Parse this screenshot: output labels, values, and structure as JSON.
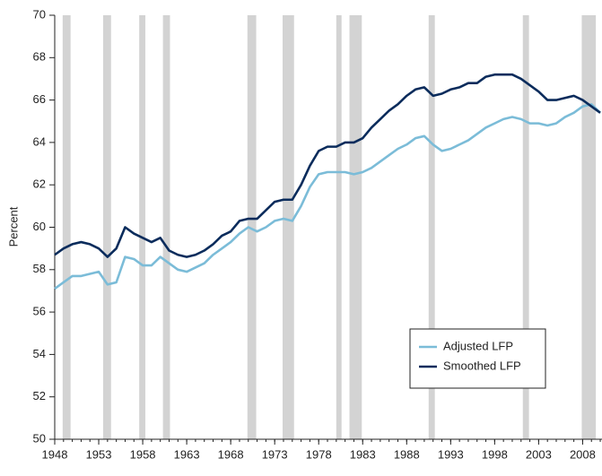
{
  "chart_data": {
    "type": "line",
    "y_label": "Percent",
    "x": [
      1948,
      1949,
      1950,
      1951,
      1952,
      1953,
      1954,
      1955,
      1956,
      1957,
      1958,
      1959,
      1960,
      1961,
      1962,
      1963,
      1964,
      1965,
      1966,
      1967,
      1968,
      1969,
      1970,
      1971,
      1972,
      1973,
      1974,
      1975,
      1976,
      1977,
      1978,
      1979,
      1980,
      1981,
      1982,
      1983,
      1984,
      1985,
      1986,
      1987,
      1988,
      1989,
      1990,
      1991,
      1992,
      1993,
      1994,
      1995,
      1996,
      1997,
      1998,
      1999,
      2000,
      2001,
      2002,
      2003,
      2004,
      2005,
      2006,
      2007,
      2008,
      2009,
      2010
    ],
    "series": [
      {
        "name": "Adjusted LFP",
        "color": "#7bbcd8",
        "values": [
          57.1,
          57.4,
          57.7,
          57.7,
          57.8,
          57.9,
          57.3,
          57.4,
          58.6,
          58.5,
          58.2,
          58.2,
          58.6,
          58.3,
          58.0,
          57.9,
          58.1,
          58.3,
          58.7,
          59.0,
          59.3,
          59.7,
          60.0,
          59.8,
          60.0,
          60.3,
          60.4,
          60.3,
          61.0,
          61.9,
          62.5,
          62.6,
          62.6,
          62.6,
          62.5,
          62.6,
          62.8,
          63.1,
          63.4,
          63.7,
          63.9,
          64.2,
          64.3,
          63.9,
          63.6,
          63.7,
          63.9,
          64.1,
          64.4,
          64.7,
          64.9,
          65.1,
          65.2,
          65.1,
          64.9,
          64.9,
          64.8,
          64.9,
          65.2,
          65.4,
          65.7,
          65.8,
          65.4
        ]
      },
      {
        "name": "Smoothed LFP",
        "color": "#0b2c5c",
        "values": [
          58.7,
          59.0,
          59.2,
          59.3,
          59.2,
          59.0,
          58.6,
          59.0,
          60.0,
          59.7,
          59.5,
          59.3,
          59.5,
          58.9,
          58.7,
          58.6,
          58.7,
          58.9,
          59.2,
          59.6,
          59.8,
          60.3,
          60.4,
          60.4,
          60.8,
          61.2,
          61.3,
          61.3,
          62.0,
          62.9,
          63.6,
          63.8,
          63.8,
          64.0,
          64.0,
          64.2,
          64.7,
          65.1,
          65.5,
          65.8,
          66.2,
          66.5,
          66.6,
          66.2,
          66.3,
          66.5,
          66.6,
          66.8,
          66.8,
          67.1,
          67.2,
          67.2,
          67.2,
          67.0,
          66.7,
          66.4,
          66.0,
          66.0,
          66.1,
          66.2,
          66.0,
          65.7,
          65.4
        ]
      }
    ],
    "shaded_periods": [
      [
        1948.9,
        1949.8
      ],
      [
        1953.5,
        1954.4
      ],
      [
        1957.6,
        1958.3
      ],
      [
        1960.3,
        1961.1
      ],
      [
        1969.9,
        1970.9
      ],
      [
        1973.9,
        1975.2
      ],
      [
        1980.0,
        1980.6
      ],
      [
        1981.5,
        1982.9
      ],
      [
        1990.5,
        1991.2
      ],
      [
        2001.2,
        2001.9
      ],
      [
        2007.9,
        2009.5
      ]
    ],
    "shade_color": "#d3d3d3",
    "xlim": [
      1948,
      2010.2
    ],
    "ylim": [
      50,
      70
    ],
    "xticks": [
      1948,
      1953,
      1958,
      1963,
      1968,
      1973,
      1978,
      1983,
      1988,
      1993,
      1998,
      2003,
      2008
    ],
    "yticks": [
      50,
      52,
      54,
      56,
      58,
      60,
      62,
      64,
      66,
      68,
      70
    ],
    "legend": "lower right"
  }
}
